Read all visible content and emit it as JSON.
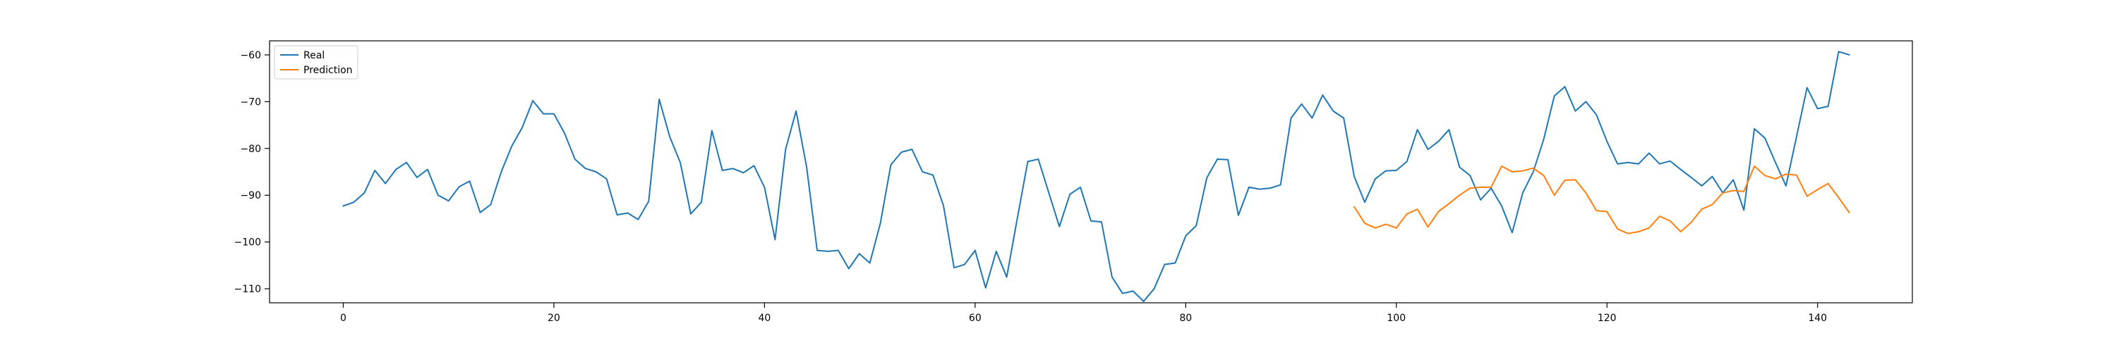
{
  "chart_data": {
    "type": "line",
    "title": "",
    "xlabel": "",
    "ylabel": "",
    "xlim": [
      -7,
      149
    ],
    "ylim": [
      -113,
      -57
    ],
    "xticks": [
      0,
      20,
      40,
      60,
      80,
      100,
      120,
      140
    ],
    "yticks": [
      -110,
      -100,
      -90,
      -80,
      -70,
      -60
    ],
    "grid": false,
    "legend_position": "top-left",
    "series": [
      {
        "name": "Real",
        "color": "#1f77b4",
        "x_start": 0,
        "values": [
          -92.3,
          -91.5,
          -89.5,
          -84.7,
          -87.5,
          -84.5,
          -83.0,
          -86.2,
          -84.5,
          -90.0,
          -91.2,
          -88.2,
          -87.0,
          -93.7,
          -92.0,
          -85.0,
          -79.5,
          -75.5,
          -69.8,
          -72.6,
          -72.6,
          -76.7,
          -82.3,
          -84.3,
          -85.0,
          -86.5,
          -94.2,
          -93.8,
          -95.2,
          -91.3,
          -69.5,
          -77.5,
          -83.0,
          -94.0,
          -91.5,
          -76.2,
          -84.7,
          -84.3,
          -85.2,
          -83.7,
          -88.3,
          -99.5,
          -80.2,
          -72.0,
          -84.0,
          -101.8,
          -102.0,
          -101.8,
          -105.7,
          -102.5,
          -104.5,
          -96.0,
          -83.5,
          -80.8,
          -80.2,
          -85.0,
          -85.7,
          -92.3,
          -105.5,
          -104.8,
          -101.8,
          -109.8,
          -102.0,
          -107.5,
          -95.0,
          -82.8,
          -82.3,
          -89.5,
          -96.7,
          -89.8,
          -88.3,
          -95.5,
          -95.7,
          -107.5,
          -111.0,
          -110.5,
          -112.7,
          -110.0,
          -104.8,
          -104.5,
          -98.7,
          -96.5,
          -86.3,
          -82.3,
          -82.4,
          -94.3,
          -88.3,
          -88.7,
          -88.5,
          -87.8,
          -73.5,
          -70.5,
          -73.5,
          -68.6,
          -72.0,
          -73.5,
          -86.0,
          -91.5,
          -86.5,
          -84.8,
          -84.7,
          -82.8,
          -76.0,
          -80.2,
          -78.5,
          -76.0,
          -84.0,
          -85.8,
          -91.0,
          -88.5,
          -92.3,
          -98.0,
          -89.5,
          -85.0,
          -78.0,
          -68.8,
          -66.8,
          -72.0,
          -70.0,
          -72.8,
          -78.5,
          -83.3,
          -83.0,
          -83.3,
          -81.0,
          -83.3,
          -82.7,
          -84.5,
          -86.2,
          -88.0,
          -86.0,
          -89.5,
          -86.7,
          -93.2,
          -75.8,
          -77.8,
          -83.0,
          -88.0,
          -77.5,
          -67.0,
          -71.5,
          -71.0,
          -59.3,
          -60.0
        ]
      },
      {
        "name": "Prediction",
        "color": "#ff7f0e",
        "x_start": 96,
        "values": [
          -92.5,
          -96.0,
          -97.0,
          -96.2,
          -97.0,
          -94.0,
          -93.0,
          -96.8,
          -93.5,
          -91.8,
          -90.0,
          -88.5,
          -88.3,
          -88.3,
          -83.8,
          -85.0,
          -84.8,
          -84.2,
          -85.8,
          -90.0,
          -86.8,
          -86.7,
          -89.5,
          -93.3,
          -93.5,
          -97.2,
          -98.2,
          -97.8,
          -97.0,
          -94.5,
          -95.5,
          -97.8,
          -95.8,
          -93.0,
          -92.0,
          -89.5,
          -89.0,
          -89.2,
          -83.8,
          -85.8,
          -86.5,
          -85.5,
          -85.7,
          -90.2,
          -88.8,
          -87.5,
          -90.5,
          -93.7
        ]
      }
    ]
  }
}
